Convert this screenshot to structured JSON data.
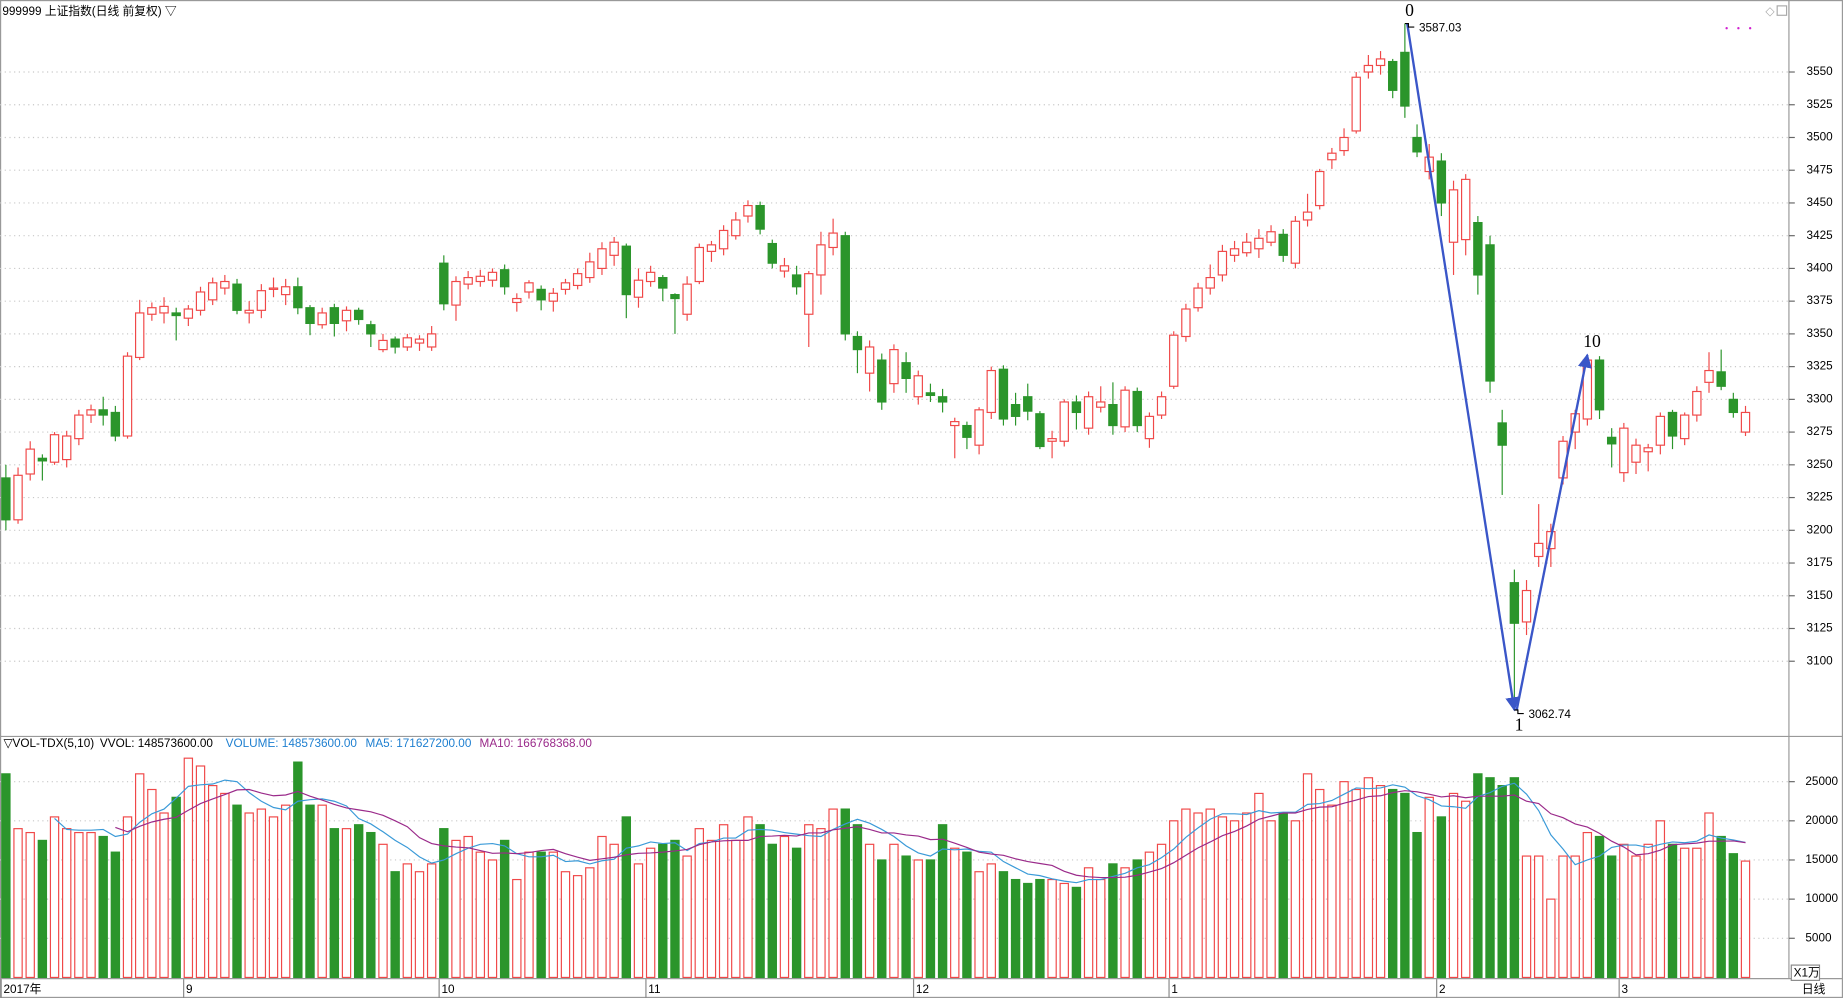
{
  "chart_data": {
    "type": "candlestick",
    "title": "999999 上证指数(日线 前复权) ▽",
    "period": "日线",
    "categories": [
      "2017年",
      null,
      null,
      null,
      null,
      null,
      null,
      null,
      null,
      null,
      null,
      null,
      null,
      null,
      null,
      "9",
      null,
      null,
      null,
      null,
      null,
      null,
      null,
      null,
      null,
      null,
      null,
      null,
      null,
      null,
      null,
      null,
      null,
      null,
      null,
      null,
      "10",
      null,
      null,
      null,
      null,
      null,
      null,
      null,
      null,
      null,
      null,
      null,
      null,
      null,
      null,
      null,
      null,
      "11",
      null,
      null,
      null,
      null,
      null,
      null,
      null,
      null,
      null,
      null,
      null,
      null,
      null,
      null,
      null,
      null,
      null,
      null,
      null,
      null,
      null,
      "12",
      null,
      null,
      null,
      null,
      null,
      null,
      null,
      null,
      null,
      null,
      null,
      null,
      null,
      null,
      null,
      null,
      null,
      null,
      null,
      null,
      "1",
      null,
      null,
      null,
      null,
      null,
      null,
      null,
      null,
      null,
      null,
      null,
      null,
      null,
      null,
      null,
      null,
      null,
      null,
      null,
      null,
      null,
      "2",
      null,
      null,
      null,
      null,
      null,
      null,
      null,
      null,
      null,
      null,
      null,
      null,
      null,
      null,
      "3",
      null,
      null,
      null,
      null,
      null,
      null,
      null,
      null,
      null,
      null
    ],
    "open": [
      3240,
      3208,
      3243,
      3255,
      3252,
      3254,
      3270,
      3288,
      3292,
      3290,
      3272,
      3332,
      3365,
      3366,
      3366,
      3362,
      3368,
      3376,
      3385,
      3388,
      3366,
      3368,
      3384,
      3380,
      3386,
      3370,
      3357,
      3370,
      3360,
      3368,
      3357,
      3338,
      3346,
      3340,
      3343,
      3340,
      3404,
      3372,
      3388,
      3390,
      3391,
      3399,
      3374,
      3382,
      3384,
      3375,
      3384,
      3387,
      3393,
      3400,
      3410,
      3417,
      3378,
      3390,
      3393,
      3380,
      3365,
      3390,
      3413,
      3415,
      3425,
      3440,
      3448,
      3419,
      3398,
      3395,
      3365,
      3395,
      3416,
      3425,
      3348,
      3320,
      3330,
      3312,
      3328,
      3302,
      3305,
      3302,
      3280,
      3280,
      3265,
      3290,
      3323,
      3296,
      3302,
      3289,
      3268,
      3268,
      3298,
      3278,
      3294,
      3296,
      3279,
      3306,
      3270,
      3288,
      3310,
      3348,
      3370,
      3385,
      3395,
      3410,
      3412,
      3415,
      3420,
      3426,
      3404,
      3437,
      3448,
      3483,
      3490,
      3505,
      3550,
      3555,
      3558,
      3565,
      3500,
      3474,
      3482,
      3420,
      3422,
      3435,
      3418,
      3282,
      3160,
      3130,
      3180,
      3186,
      3240,
      3275,
      3285,
      3330,
      3271,
      3244,
      3252,
      3260,
      3265,
      3290,
      3270,
      3288,
      3313,
      3321,
      3300,
      3275
    ],
    "high": [
      3250,
      3248,
      3268,
      3258,
      3275,
      3276,
      3292,
      3296,
      3302,
      3295,
      3336,
      3376,
      3374,
      3378,
      3370,
      3372,
      3386,
      3393,
      3395,
      3392,
      3375,
      3388,
      3393,
      3392,
      3393,
      3372,
      3370,
      3373,
      3371,
      3370,
      3360,
      3350,
      3348,
      3350,
      3349,
      3356,
      3410,
      3394,
      3398,
      3399,
      3400,
      3403,
      3381,
      3391,
      3387,
      3385,
      3392,
      3400,
      3412,
      3420,
      3424,
      3419,
      3400,
      3402,
      3395,
      3381,
      3394,
      3419,
      3421,
      3433,
      3443,
      3452,
      3451,
      3422,
      3408,
      3402,
      3398,
      3428,
      3438,
      3428,
      3352,
      3345,
      3335,
      3342,
      3336,
      3322,
      3312,
      3308,
      3286,
      3283,
      3294,
      3325,
      3326,
      3305,
      3312,
      3291,
      3276,
      3300,
      3303,
      3306,
      3310,
      3313,
      3310,
      3309,
      3290,
      3306,
      3352,
      3373,
      3389,
      3403,
      3418,
      3421,
      3427,
      3430,
      3433,
      3430,
      3440,
      3457,
      3476,
      3492,
      3507,
      3550,
      3563,
      3566,
      3560,
      3587.03,
      3510,
      3495,
      3488,
      3467,
      3472,
      3440,
      3425,
      3292,
      3170,
      3162,
      3220,
      3205,
      3272,
      3292,
      3334,
      3333,
      3278,
      3282,
      3270,
      3266,
      3290,
      3292,
      3290,
      3310,
      3336,
      3338,
      3305,
      3295
    ],
    "low": [
      3200,
      3205,
      3238,
      3238,
      3250,
      3248,
      3265,
      3282,
      3280,
      3268,
      3270,
      3330,
      3360,
      3358,
      3345,
      3356,
      3364,
      3372,
      3380,
      3365,
      3358,
      3362,
      3378,
      3372,
      3365,
      3349,
      3354,
      3348,
      3352,
      3357,
      3340,
      3336,
      3335,
      3337,
      3337,
      3337,
      3368,
      3360,
      3384,
      3386,
      3386,
      3380,
      3367,
      3377,
      3368,
      3367,
      3380,
      3384,
      3389,
      3395,
      3402,
      3362,
      3370,
      3386,
      3375,
      3350,
      3360,
      3388,
      3405,
      3410,
      3422,
      3435,
      3426,
      3400,
      3393,
      3380,
      3340,
      3380,
      3410,
      3345,
      3320,
      3306,
      3292,
      3305,
      3305,
      3296,
      3298,
      3290,
      3255,
      3262,
      3258,
      3285,
      3280,
      3280,
      3284,
      3262,
      3255,
      3264,
      3277,
      3273,
      3290,
      3273,
      3275,
      3275,
      3263,
      3285,
      3308,
      3344,
      3367,
      3380,
      3390,
      3405,
      3409,
      3408,
      3417,
      3405,
      3400,
      3432,
      3445,
      3476,
      3486,
      3503,
      3545,
      3548,
      3530,
      3515,
      3485,
      3468,
      3440,
      3395,
      3410,
      3380,
      3305,
      3227,
      3062.74,
      3120,
      3172,
      3172,
      3235,
      3262,
      3280,
      3285,
      3248,
      3237,
      3243,
      3245,
      3258,
      3262,
      3265,
      3283,
      3305,
      3307,
      3286,
      3272
    ],
    "close": [
      3208,
      3242,
      3262,
      3253,
      3273,
      3272,
      3288,
      3292,
      3288,
      3272,
      3333,
      3366,
      3370,
      3371,
      3364,
      3369,
      3382,
      3389,
      3390,
      3368,
      3368,
      3383,
      3385,
      3386,
      3370,
      3358,
      3366,
      3358,
      3368,
      3361,
      3350,
      3345,
      3340,
      3347,
      3346,
      3350,
      3373,
      3390,
      3393,
      3394,
      3397,
      3386,
      3377,
      3389,
      3376,
      3381,
      3389,
      3396,
      3405,
      3415,
      3420,
      3380,
      3391,
      3397,
      3385,
      3377,
      3388,
      3416,
      3418,
      3429,
      3437,
      3448,
      3430,
      3404,
      3402,
      3386,
      3396,
      3418,
      3427,
      3350,
      3338,
      3340,
      3298,
      3338,
      3316,
      3318,
      3303,
      3298,
      3283,
      3271,
      3292,
      3322,
      3285,
      3287,
      3291,
      3264,
      3270,
      3298,
      3290,
      3302,
      3298,
      3280,
      3307,
      3280,
      3287,
      3302,
      3349,
      3369,
      3385,
      3393,
      3413,
      3415,
      3420,
      3423,
      3428,
      3410,
      3436,
      3443,
      3474,
      3488,
      3500,
      3546,
      3555,
      3560,
      3536,
      3524,
      3489,
      3485,
      3450,
      3460,
      3468,
      3395,
      3314,
      3265,
      3129,
      3154,
      3190,
      3199,
      3268,
      3289,
      3330,
      3292,
      3266,
      3278,
      3265,
      3263,
      3287,
      3272,
      3288,
      3306,
      3322,
      3310,
      3290,
      3290
    ],
    "ylim": [
      3043,
      3605
    ],
    "yticks": [
      3100,
      3125,
      3150,
      3175,
      3200,
      3225,
      3250,
      3275,
      3300,
      3325,
      3350,
      3375,
      3400,
      3425,
      3450,
      3475,
      3500,
      3525,
      3550
    ],
    "grid": true,
    "up_color": "#f04848",
    "down_color": "#2b952b",
    "wave": {
      "labels": [
        "0",
        "1",
        "10"
      ],
      "color": "#3a56c8"
    },
    "volume": {
      "title": "▽VOL-TDX(5,10)",
      "vvol_label": "VVOL: 148573600.00",
      "volume_label": "VOLUME: 148573600.00",
      "ma5_label": "MA5: 171627200.00",
      "ma10_label": "MA10: 166768368.00",
      "volume_color": "#1e7fd0",
      "ma5_color": "#3a9ad8",
      "ma10_color": "#9a2a8a",
      "unit": "X1万",
      "values": [
        26000,
        19000,
        18500,
        17500,
        20500,
        19000,
        18500,
        18500,
        18000,
        16000,
        20500,
        26000,
        24000,
        21000,
        23000,
        28000,
        27000,
        24500,
        23500,
        22000,
        21000,
        21500,
        20500,
        22000,
        27500,
        22000,
        22000,
        19000,
        19000,
        19500,
        18500,
        17000,
        13500,
        14500,
        13500,
        14500,
        19000,
        17500,
        18000,
        16000,
        15000,
        17500,
        12500,
        16000,
        16000,
        16000,
        13500,
        13000,
        14000,
        18000,
        17000,
        20500,
        14500,
        16500,
        17000,
        17500,
        15500,
        19000,
        17500,
        19500,
        17500,
        20500,
        19500,
        17000,
        18000,
        16500,
        19500,
        19000,
        21500,
        21500,
        19500,
        17000,
        15000,
        17000,
        15500,
        15000,
        15000,
        19500,
        16500,
        16000,
        13500,
        14500,
        13500,
        12500,
        12000,
        12500,
        12500,
        12000,
        11500,
        14000,
        12500,
        14500,
        14000,
        15000,
        16000,
        17000,
        20000,
        21500,
        21000,
        21500,
        20500,
        20000,
        21000,
        23500,
        20000,
        21000,
        20000,
        26000,
        24000,
        22000,
        25000,
        24000,
        25500,
        24500,
        24000,
        23500,
        18500,
        23000,
        20500,
        23500,
        22500,
        26000,
        25500,
        24500,
        25500,
        15500,
        15500,
        10000,
        15500,
        15500,
        18500,
        18000,
        15500,
        17000,
        15500,
        17000,
        20000,
        17000,
        16500,
        16500,
        21000,
        18000,
        15800,
        14857.36
      ],
      "ylim": [
        0,
        30700
      ],
      "yticks": [
        5000,
        10000,
        15000,
        20000,
        25000
      ]
    }
  }
}
